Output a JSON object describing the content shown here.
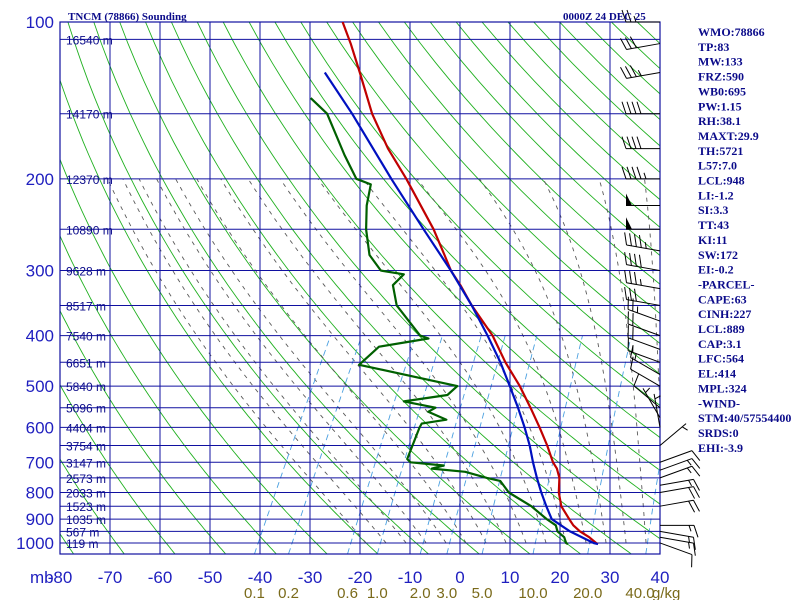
{
  "header": {
    "station_title": "TNCM (78866) Sounding",
    "time_label": "0000Z 24 DEC 25"
  },
  "indices": [
    "WMO:78866",
    "TP:83",
    "MW:133",
    "FRZ:590",
    "WB0:695",
    "PW:1.15",
    "RH:38.1",
    "MAXT:29.9",
    "TH:5721",
    "L57:7.0",
    "LCL:948",
    "LI:-1.2",
    "SI:3.3",
    "TT:43",
    "KI:11",
    "SW:172",
    "EI:-0.2",
    "-PARCEL-",
    "CAPE:63",
    "CINH:227",
    "LCL:889",
    "CAP:3.1",
    "LFC:564",
    "EL:414",
    "MPL:324",
    "-WIND-",
    "STM:40/57554400",
    "SRDS:0",
    "EHI:-3.9"
  ],
  "colors": {
    "frame": "#1010a0",
    "isobar": "#1010a0",
    "isotherm": "#1010a0",
    "dry_adiabat": "#20b020",
    "moist_adiabat": "#5a5a5a",
    "mixing_ratio": "#4aa0e0",
    "temperature": "#c00000",
    "dewpoint": "#006000",
    "parcel": "#0010c0",
    "wind": "#000000"
  },
  "chart_data": {
    "type": "skew-t",
    "title": "TNCM (78866) Sounding",
    "pressure_unit": "mb",
    "pressure_ticks": [
      100,
      200,
      300,
      400,
      500,
      600,
      700,
      800,
      900,
      1000
    ],
    "temperature_ticks": [
      -80,
      -70,
      -60,
      -50,
      -40,
      -30,
      -20,
      -10,
      0,
      10,
      20,
      30,
      40
    ],
    "temperature_tick_labels": [
      "-80",
      "-70",
      "-60",
      "-50",
      "-40",
      "-30",
      "-20",
      "-10",
      "0",
      "10",
      "20",
      "30",
      "40"
    ],
    "mixing_ratio_unit": "g/kg",
    "mixing_ratio_labels": [
      "0.1",
      "0.2",
      "0.6",
      "1.0",
      "2.0",
      "3.0",
      "5.0",
      "10.0",
      "20.0",
      "40.0"
    ],
    "height_levels": [
      {
        "p": 108,
        "label": "16540 m"
      },
      {
        "p": 150,
        "label": "14170 m"
      },
      {
        "p": 200,
        "label": "12370 m"
      },
      {
        "p": 250,
        "label": "10890 m"
      },
      {
        "p": 300,
        "label": "9628 m"
      },
      {
        "p": 350,
        "label": "8517 m"
      },
      {
        "p": 400,
        "label": "7540 m"
      },
      {
        "p": 450,
        "label": "6651 m"
      },
      {
        "p": 500,
        "label": "5840 m"
      },
      {
        "p": 550,
        "label": "5096 m"
      },
      {
        "p": 600,
        "label": "4404 m"
      },
      {
        "p": 650,
        "label": "3754 m"
      },
      {
        "p": 700,
        "label": "3147 m"
      },
      {
        "p": 750,
        "label": "2573 m"
      },
      {
        "p": 800,
        "label": "2033 m"
      },
      {
        "p": 850,
        "label": "1523 m"
      },
      {
        "p": 900,
        "label": "1035 m"
      },
      {
        "p": 950,
        "label": "567 m"
      },
      {
        "p": 1000,
        "label": "119 m"
      }
    ],
    "series": [
      {
        "key": "temperature",
        "points": [
          [
            1005,
            26.5
          ],
          [
            1000,
            26.0
          ],
          [
            975,
            24.0
          ],
          [
            950,
            21.5
          ],
          [
            925,
            19.5
          ],
          [
            900,
            18.0
          ],
          [
            850,
            15.0
          ],
          [
            800,
            13.0
          ],
          [
            750,
            11.5
          ],
          [
            720,
            10.0
          ],
          [
            700,
            8.5
          ],
          [
            650,
            5.5
          ],
          [
            600,
            2.0
          ],
          [
            550,
            -2.0
          ],
          [
            500,
            -6.5
          ],
          [
            450,
            -12.0
          ],
          [
            400,
            -17.5
          ],
          [
            350,
            -25.0
          ],
          [
            320,
            -29.5
          ],
          [
            300,
            -33.0
          ],
          [
            280,
            -36.0
          ],
          [
            250,
            -41.0
          ],
          [
            200,
            -52.0
          ],
          [
            175,
            -59.0
          ],
          [
            150,
            -66.0
          ],
          [
            125,
            -73.0
          ],
          [
            110,
            -78.0
          ],
          [
            100,
            -82.0
          ]
        ]
      },
      {
        "key": "dewpoint",
        "points": [
          [
            1005,
            20.5
          ],
          [
            1000,
            20.0
          ],
          [
            975,
            19.0
          ],
          [
            950,
            17.0
          ],
          [
            925,
            16.0
          ],
          [
            900,
            13.5
          ],
          [
            850,
            9.0
          ],
          [
            800,
            3.0
          ],
          [
            760,
            0.0
          ],
          [
            750,
            -3.0
          ],
          [
            730,
            -8.0
          ],
          [
            720,
            -15.0
          ],
          [
            710,
            -13.0
          ],
          [
            700,
            -20.0
          ],
          [
            690,
            -21.0
          ],
          [
            600,
            -22.0
          ],
          [
            590,
            -22.0
          ],
          [
            580,
            -17.5
          ],
          [
            560,
            -22.0
          ],
          [
            550,
            -21.0
          ],
          [
            535,
            -28.0
          ],
          [
            520,
            -20.0
          ],
          [
            500,
            -19.0
          ],
          [
            455,
            -41.0
          ],
          [
            420,
            -39.0
          ],
          [
            405,
            -30.0
          ],
          [
            400,
            -32.0
          ],
          [
            350,
            -40.0
          ],
          [
            320,
            -43.0
          ],
          [
            305,
            -42.0
          ],
          [
            300,
            -47.0
          ],
          [
            280,
            -51.0
          ],
          [
            250,
            -54.5
          ],
          [
            225,
            -57.0
          ],
          [
            205,
            -58.5
          ],
          [
            200,
            -62.0
          ],
          [
            180,
            -67.0
          ],
          [
            150,
            -75.0
          ],
          [
            140,
            -80.0
          ]
        ]
      },
      {
        "key": "parcel",
        "points": [
          [
            1005,
            26.5
          ],
          [
            1000,
            25.5
          ],
          [
            950,
            19.5
          ],
          [
            900,
            14.5
          ],
          [
            850,
            12.0
          ],
          [
            800,
            9.5
          ],
          [
            750,
            7.0
          ],
          [
            700,
            4.5
          ],
          [
            650,
            2.0
          ],
          [
            600,
            -1.0
          ],
          [
            550,
            -4.5
          ],
          [
            500,
            -8.5
          ],
          [
            450,
            -13.0
          ],
          [
            400,
            -18.5
          ],
          [
            350,
            -25.0
          ],
          [
            300,
            -33.0
          ],
          [
            250,
            -43.0
          ],
          [
            200,
            -55.0
          ],
          [
            150,
            -70.0
          ],
          [
            125,
            -80.0
          ]
        ]
      }
    ],
    "wind_barbs": [
      {
        "p": 1000,
        "dir": 110,
        "spd": 10
      },
      {
        "p": 975,
        "dir": 100,
        "spd": 15
      },
      {
        "p": 950,
        "dir": 100,
        "spd": 15
      },
      {
        "p": 925,
        "dir": 90,
        "spd": 15
      },
      {
        "p": 850,
        "dir": 80,
        "spd": 20
      },
      {
        "p": 800,
        "dir": 80,
        "spd": 20
      },
      {
        "p": 775,
        "dir": 80,
        "spd": 15
      },
      {
        "p": 750,
        "dir": 70,
        "spd": 15
      },
      {
        "p": 725,
        "dir": 70,
        "spd": 15
      },
      {
        "p": 700,
        "dir": 70,
        "spd": 10
      },
      {
        "p": 650,
        "dir": 50,
        "spd": 5
      },
      {
        "p": 600,
        "dir": 350,
        "spd": 5
      },
      {
        "p": 575,
        "dir": 330,
        "spd": 5
      },
      {
        "p": 550,
        "dir": 310,
        "spd": 10
      },
      {
        "p": 500,
        "dir": 300,
        "spd": 10
      },
      {
        "p": 475,
        "dir": 300,
        "spd": 15
      },
      {
        "p": 450,
        "dir": 290,
        "spd": 15
      },
      {
        "p": 425,
        "dir": 290,
        "spd": 20
      },
      {
        "p": 400,
        "dir": 290,
        "spd": 20
      },
      {
        "p": 375,
        "dir": 290,
        "spd": 25
      },
      {
        "p": 350,
        "dir": 280,
        "spd": 30
      },
      {
        "p": 325,
        "dir": 280,
        "spd": 35
      },
      {
        "p": 300,
        "dir": 280,
        "spd": 40
      },
      {
        "p": 275,
        "dir": 280,
        "spd": 45
      },
      {
        "p": 250,
        "dir": 270,
        "spd": 50
      },
      {
        "p": 225,
        "dir": 270,
        "spd": 50
      },
      {
        "p": 200,
        "dir": 270,
        "spd": 45
      },
      {
        "p": 175,
        "dir": 270,
        "spd": 40
      },
      {
        "p": 150,
        "dir": 270,
        "spd": 40
      },
      {
        "p": 125,
        "dir": 260,
        "spd": 35
      },
      {
        "p": 110,
        "dir": 260,
        "spd": 30
      },
      {
        "p": 100,
        "dir": 270,
        "spd": 25
      }
    ]
  }
}
